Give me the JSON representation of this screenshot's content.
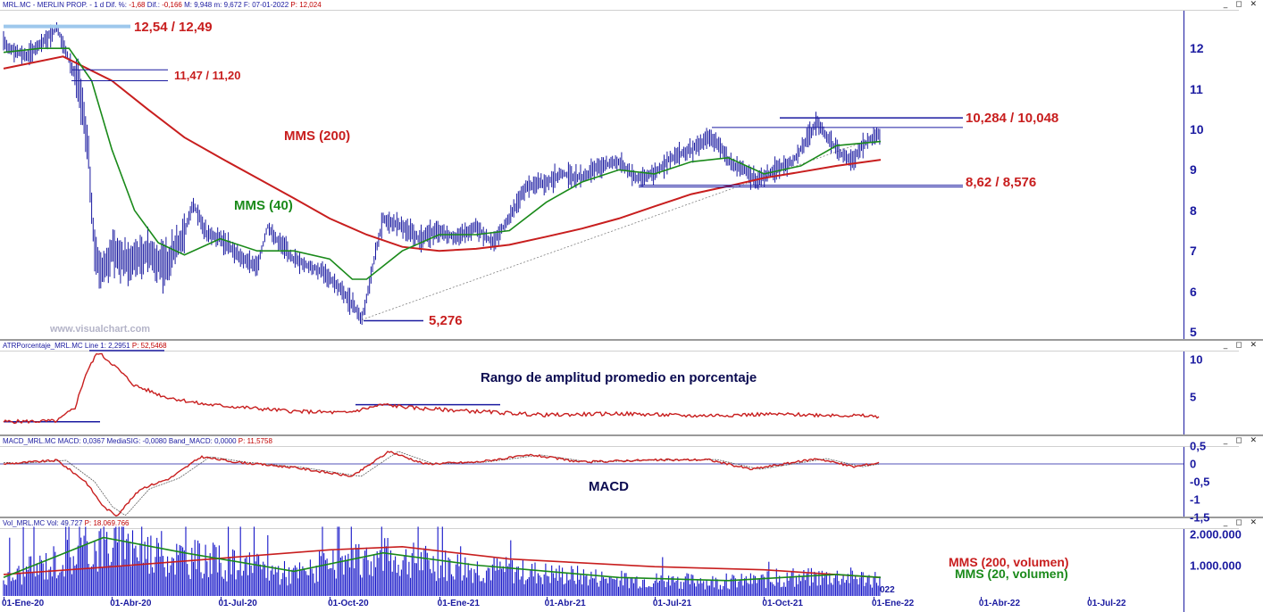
{
  "header": {
    "price": {
      "symbol": "MRL.MC - MERLIN PROP. - 1 d",
      "dif_label": "Dif. %:",
      "dif_pct": "-1,68",
      "dif_label2": "Dif.:",
      "dif": "-0,166",
      "m_label": "M:",
      "m": "9,948",
      "m2_label": "m:",
      "m2": "9,672",
      "f_label": "F:",
      "f": "07-01-2022",
      "p_label": "P:",
      "p": "12,024"
    },
    "atr": {
      "name": "ATRPorcentaje_MRL.MC",
      "line_label": "Line 1:",
      "line": "2,2951",
      "p_label": "P:",
      "p": "52,5468"
    },
    "macd": {
      "name": "MACD_MRL.MC",
      "macd_label": "MACD:",
      "macd": "0,0367",
      "sig_label": "MediaSIG:",
      "sig": "-0,0080",
      "band_label": "Band_MACD:",
      "band": "0,0000",
      "p_label": "P:",
      "p": "11,5758"
    },
    "vol": {
      "name": "Vol_MRL.MC",
      "vol_label": "Vol:",
      "vol": "49.727",
      "p_label": "P:",
      "p": "18.069.766"
    }
  },
  "window_buttons": "_ ◻ ✕",
  "annotations": {
    "top_level": "12,54 / 12,49",
    "level_1147": "11,47 / 11,20",
    "mms200": "MMS (200)",
    "mms40": "MMS (40)",
    "low": "5,276",
    "resistance": "10,284 / 10,048",
    "support": "8,62 / 8,576",
    "watermark": "www.visualchart.com",
    "atr_title": "Rango de amplitud promedio en porcentaje",
    "macd_title": "MACD",
    "vol_mms200": "MMS (200, volumen)",
    "vol_mms20": "MMS (20, volumen)",
    "axis_cut_label": "022"
  },
  "colors": {
    "price": "#1a1aa0",
    "mms200": "#c81e1e",
    "mms40": "#1a8a1a",
    "levels": "#1a1aa0",
    "top_level": "#9ec8ec",
    "volume": "#1414c8"
  },
  "chart_data": [
    {
      "type": "line",
      "panel": "price",
      "x_labels": [
        "01-Ene-20",
        "01-Abr-20",
        "01-Jul-20",
        "01-Oct-20",
        "01-Ene-21",
        "01-Abr-21",
        "01-Jul-21",
        "01-Oct-21",
        "01-Ene-22",
        "01-Abr-22",
        "01-Jul-22"
      ],
      "y_ticks": [
        "5",
        "6",
        "7",
        "8",
        "9",
        "10",
        "11",
        "12"
      ],
      "ylim": [
        4.9,
        13.0
      ],
      "series": [
        {
          "name": "Precio",
          "points": [
            [
              "2020-01-01",
              12.1
            ],
            [
              "2020-01-20",
              11.8
            ],
            [
              "2020-02-05",
              12.2
            ],
            [
              "2020-02-15",
              12.5
            ],
            [
              "2020-02-25",
              11.7
            ],
            [
              "2020-03-05",
              11.0
            ],
            [
              "2020-03-12",
              9.5
            ],
            [
              "2020-03-18",
              6.8
            ],
            [
              "2020-03-25",
              6.5
            ],
            [
              "2020-04-01",
              7.0
            ],
            [
              "2020-04-15",
              6.7
            ],
            [
              "2020-05-01",
              7.0
            ],
            [
              "2020-05-15",
              6.6
            ],
            [
              "2020-06-01",
              7.4
            ],
            [
              "2020-06-08",
              8.2
            ],
            [
              "2020-06-20",
              7.4
            ],
            [
              "2020-07-01",
              7.3
            ],
            [
              "2020-07-15",
              6.9
            ],
            [
              "2020-08-01",
              6.6
            ],
            [
              "2020-08-10",
              7.6
            ],
            [
              "2020-08-20",
              7.2
            ],
            [
              "2020-09-01",
              6.8
            ],
            [
              "2020-09-15",
              6.6
            ],
            [
              "2020-09-25",
              6.5
            ],
            [
              "2020-10-05",
              6.2
            ],
            [
              "2020-10-20",
              5.7
            ],
            [
              "2020-10-28",
              5.3
            ],
            [
              "2020-11-09",
              7.0
            ],
            [
              "2020-11-15",
              7.8
            ],
            [
              "2020-12-01",
              7.6
            ],
            [
              "2020-12-15",
              7.3
            ],
            [
              "2021-01-01",
              7.5
            ],
            [
              "2021-01-15",
              7.3
            ],
            [
              "2021-02-01",
              7.6
            ],
            [
              "2021-02-15",
              7.2
            ],
            [
              "2021-03-01",
              7.8
            ],
            [
              "2021-03-15",
              8.6
            ],
            [
              "2021-04-01",
              8.7
            ],
            [
              "2021-04-15",
              8.9
            ],
            [
              "2021-05-01",
              8.8
            ],
            [
              "2021-05-15",
              9.1
            ],
            [
              "2021-06-01",
              9.2
            ],
            [
              "2021-06-15",
              8.8
            ],
            [
              "2021-07-01",
              8.9
            ],
            [
              "2021-07-15",
              9.3
            ],
            [
              "2021-08-01",
              9.5
            ],
            [
              "2021-08-15",
              9.8
            ],
            [
              "2021-08-25",
              9.6
            ],
            [
              "2021-09-01",
              9.2
            ],
            [
              "2021-09-15",
              9.0
            ],
            [
              "2021-09-25",
              8.7
            ],
            [
              "2021-10-10",
              9.0
            ],
            [
              "2021-10-25",
              9.2
            ],
            [
              "2021-11-05",
              9.7
            ],
            [
              "2021-11-15",
              10.2
            ],
            [
              "2021-11-25",
              9.7
            ],
            [
              "2021-12-05",
              9.4
            ],
            [
              "2021-12-15",
              9.2
            ],
            [
              "2021-12-22",
              9.6
            ],
            [
              "2022-01-07",
              9.9
            ]
          ]
        },
        {
          "name": "MMS (40)",
          "points": [
            [
              "2020-01-01",
              11.9
            ],
            [
              "2020-02-01",
              12.0
            ],
            [
              "2020-02-25",
              12.0
            ],
            [
              "2020-03-15",
              11.2
            ],
            [
              "2020-04-01",
              9.5
            ],
            [
              "2020-04-20",
              8.0
            ],
            [
              "2020-05-10",
              7.2
            ],
            [
              "2020-06-01",
              6.9
            ],
            [
              "2020-07-01",
              7.3
            ],
            [
              "2020-08-01",
              7.0
            ],
            [
              "2020-09-01",
              7.0
            ],
            [
              "2020-10-01",
              6.8
            ],
            [
              "2020-10-20",
              6.3
            ],
            [
              "2020-11-01",
              6.3
            ],
            [
              "2020-12-01",
              7.0
            ],
            [
              "2021-01-01",
              7.4
            ],
            [
              "2021-02-01",
              7.4
            ],
            [
              "2021-03-01",
              7.5
            ],
            [
              "2021-04-01",
              8.2
            ],
            [
              "2021-05-01",
              8.7
            ],
            [
              "2021-06-01",
              9.0
            ],
            [
              "2021-07-01",
              8.9
            ],
            [
              "2021-08-01",
              9.2
            ],
            [
              "2021-09-01",
              9.3
            ],
            [
              "2021-10-01",
              8.9
            ],
            [
              "2021-11-01",
              9.1
            ],
            [
              "2021-12-01",
              9.6
            ],
            [
              "2022-01-07",
              9.7
            ]
          ]
        },
        {
          "name": "MMS (200)",
          "points": [
            [
              "2020-01-01",
              11.5
            ],
            [
              "2020-02-20",
              11.8
            ],
            [
              "2020-04-01",
              11.2
            ],
            [
              "2020-05-01",
              10.5
            ],
            [
              "2020-06-01",
              9.8
            ],
            [
              "2020-07-01",
              9.3
            ],
            [
              "2020-08-01",
              8.8
            ],
            [
              "2020-09-01",
              8.3
            ],
            [
              "2020-10-01",
              7.8
            ],
            [
              "2020-11-01",
              7.4
            ],
            [
              "2020-12-01",
              7.1
            ],
            [
              "2021-01-01",
              7.0
            ],
            [
              "2021-02-01",
              7.05
            ],
            [
              "2021-03-01",
              7.15
            ],
            [
              "2021-04-01",
              7.35
            ],
            [
              "2021-05-01",
              7.55
            ],
            [
              "2021-06-01",
              7.8
            ],
            [
              "2021-07-01",
              8.1
            ],
            [
              "2021-08-01",
              8.4
            ],
            [
              "2021-09-01",
              8.6
            ],
            [
              "2021-10-01",
              8.8
            ],
            [
              "2021-11-01",
              8.95
            ],
            [
              "2021-12-01",
              9.1
            ],
            [
              "2022-01-07",
              9.25
            ]
          ]
        }
      ],
      "levels": [
        {
          "value": 12.54,
          "label": "12,54 / 12,49"
        },
        {
          "value": 11.47,
          "label": "11,47 / 11,20"
        },
        {
          "value": 11.2
        },
        {
          "value": 10.284,
          "label": "10,284 / 10,048"
        },
        {
          "value": 10.048
        },
        {
          "value": 8.62,
          "label": "8,62 / 8,576"
        },
        {
          "value": 8.576
        },
        {
          "value": 5.276,
          "label": "5,276"
        }
      ]
    },
    {
      "type": "line",
      "panel": "atr",
      "y_ticks": [
        "5",
        "10"
      ],
      "ylim": [
        0,
        12.5
      ],
      "series": [
        {
          "name": "ATRPorcentaje_MRL.MC",
          "points": [
            [
              "2020-01-01",
              1.6
            ],
            [
              "2020-02-15",
              1.7
            ],
            [
              "2020-03-01",
              3.5
            ],
            [
              "2020-03-10",
              8.0
            ],
            [
              "2020-03-20",
              11.0
            ],
            [
              "2020-04-01",
              9.5
            ],
            [
              "2020-04-20",
              6.5
            ],
            [
              "2020-05-15",
              5.0
            ],
            [
              "2020-06-15",
              4.0
            ],
            [
              "2020-07-15",
              3.6
            ],
            [
              "2020-09-01",
              3.0
            ],
            [
              "2020-10-15",
              2.8
            ],
            [
              "2020-11-15",
              3.9
            ],
            [
              "2020-12-15",
              3.4
            ],
            [
              "2021-02-01",
              3.0
            ],
            [
              "2021-04-01",
              2.5
            ],
            [
              "2021-06-01",
              2.7
            ],
            [
              "2021-08-01",
              2.4
            ],
            [
              "2021-10-01",
              2.6
            ],
            [
              "2021-12-01",
              2.5
            ],
            [
              "2022-01-07",
              2.3
            ]
          ]
        }
      ]
    },
    {
      "type": "line",
      "panel": "macd",
      "y_ticks": [
        "0,5",
        "0",
        "-0,5",
        "-1",
        "-1,5"
      ],
      "ylim": [
        -1.6,
        0.7
      ],
      "series": [
        {
          "name": "MACD",
          "points": [
            [
              "2020-01-01",
              0.0
            ],
            [
              "2020-02-15",
              0.1
            ],
            [
              "2020-03-10",
              -0.5
            ],
            [
              "2020-03-25",
              -1.2
            ],
            [
              "2020-04-05",
              -1.45
            ],
            [
              "2020-04-25",
              -0.7
            ],
            [
              "2020-05-20",
              -0.4
            ],
            [
              "2020-06-15",
              0.2
            ],
            [
              "2020-07-15",
              0.05
            ],
            [
              "2020-09-01",
              -0.1
            ],
            [
              "2020-10-20",
              -0.35
            ],
            [
              "2020-11-20",
              0.35
            ],
            [
              "2020-12-20",
              0.0
            ],
            [
              "2021-02-01",
              0.05
            ],
            [
              "2021-03-20",
              0.25
            ],
            [
              "2021-05-01",
              0.05
            ],
            [
              "2021-06-15",
              0.1
            ],
            [
              "2021-08-15",
              0.12
            ],
            [
              "2021-09-20",
              -0.15
            ],
            [
              "2021-11-15",
              0.15
            ],
            [
              "2021-12-15",
              -0.08
            ],
            [
              "2022-01-07",
              0.04
            ]
          ]
        }
      ]
    },
    {
      "type": "bar",
      "panel": "volume",
      "y_ticks": [
        "1.000.000",
        "2.000.000"
      ],
      "ylim": [
        0,
        2300000
      ],
      "series": [
        {
          "name": "MMS (200, volumen)",
          "points": [
            [
              "2020-01-01",
              700000
            ],
            [
              "2020-04-01",
              950000
            ],
            [
              "2020-10-01",
              1500000
            ],
            [
              "2020-12-01",
              1600000
            ],
            [
              "2021-03-01",
              1200000
            ],
            [
              "2021-07-01",
              950000
            ],
            [
              "2021-10-01",
              850000
            ],
            [
              "2022-01-07",
              600000
            ]
          ]
        },
        {
          "name": "MMS (20, volumen)",
          "points": [
            [
              "2020-01-01",
              600000
            ],
            [
              "2020-03-25",
              1900000
            ],
            [
              "2020-06-01",
              1400000
            ],
            [
              "2020-09-01",
              800000
            ],
            [
              "2020-11-15",
              1400000
            ],
            [
              "2021-02-01",
              1000000
            ],
            [
              "2021-06-01",
              600000
            ],
            [
              "2021-09-01",
              500000
            ],
            [
              "2021-12-01",
              700000
            ],
            [
              "2022-01-07",
              600000
            ]
          ]
        }
      ]
    }
  ]
}
